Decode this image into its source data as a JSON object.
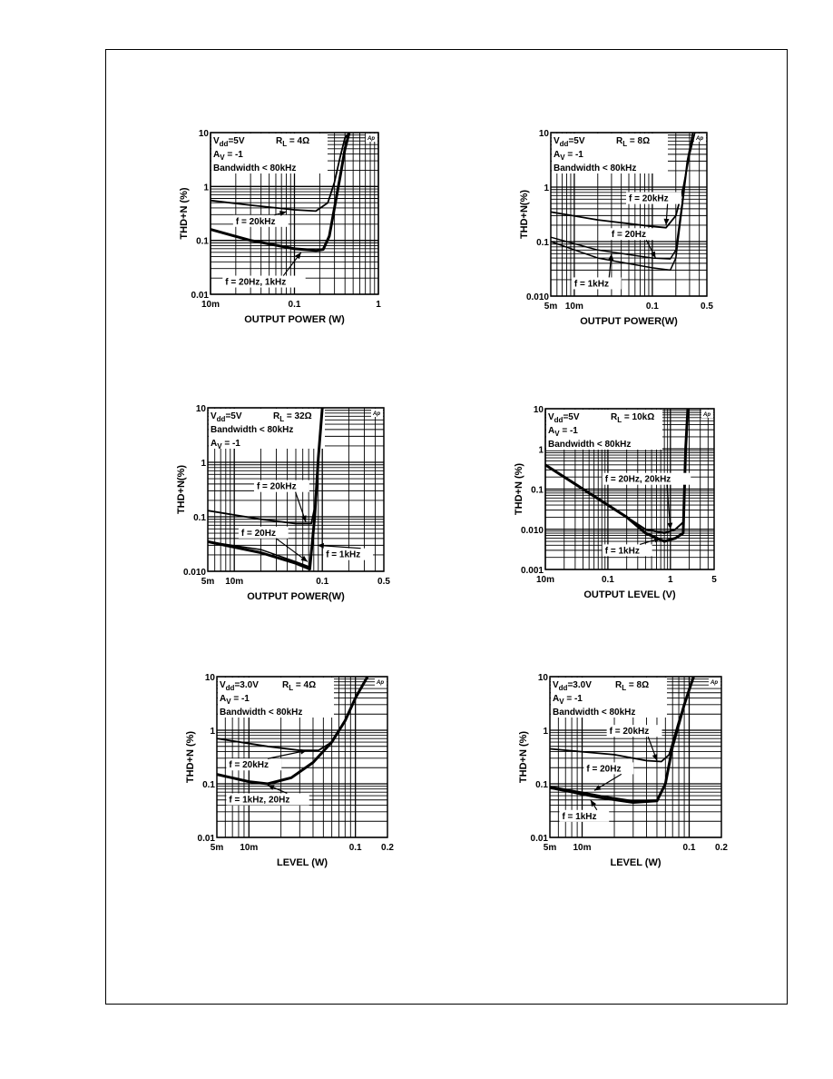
{
  "page": {
    "border": true
  },
  "chart_data": [
    {
      "type": "line",
      "scale": "log-log",
      "header": {
        "line1": "Vdd=5V",
        "line1b": "RL = 4Ω",
        "line2": "AV = -1",
        "line3": "Bandwidth < 80kHz",
        "corner": "Ap"
      },
      "xlabel": "OUTPUT POWER (W)",
      "ylabel": "THD+N (%)",
      "xlim": [
        0.01,
        1
      ],
      "ylim": [
        0.01,
        10
      ],
      "xticks": [
        {
          "v": 0.01,
          "label": "10m"
        },
        {
          "v": 0.1,
          "label": "0.1"
        },
        {
          "v": 1,
          "label": "1"
        }
      ],
      "yticks": [
        {
          "v": 10,
          "label": "10"
        },
        {
          "v": 1,
          "label": "1"
        },
        {
          "v": 0.1,
          "label": "0.1"
        },
        {
          "v": 0.01,
          "label": "0.01"
        }
      ],
      "series": [
        {
          "name": "f = 20kHz",
          "width": 1.8,
          "x": [
            0.01,
            0.03,
            0.1,
            0.18,
            0.25,
            0.3,
            0.35,
            0.4,
            0.45
          ],
          "y": [
            0.55,
            0.45,
            0.37,
            0.35,
            0.5,
            1.2,
            3.5,
            8,
            10
          ]
        },
        {
          "name": "f = 20Hz, 1kHz",
          "width": 3,
          "x": [
            0.01,
            0.03,
            0.1,
            0.18,
            0.22,
            0.26,
            0.3,
            0.35,
            0.4,
            0.45
          ],
          "y": [
            0.16,
            0.1,
            0.07,
            0.065,
            0.068,
            0.12,
            0.4,
            1.5,
            5,
            10
          ]
        }
      ],
      "annotations": [
        {
          "text": "f = 20kHz",
          "x": 0.02,
          "y": 0.2,
          "ax": 0.08,
          "ay": 0.34
        },
        {
          "text": "f = 20Hz, 1kHz",
          "x": 0.015,
          "y": 0.015,
          "ax": 0.12,
          "ay": 0.06
        }
      ]
    },
    {
      "type": "line",
      "scale": "log-log",
      "header": {
        "line1": "Vdd=5V",
        "line1b": "RL = 8Ω",
        "line2": "AV = -1",
        "line3": "Bandwidth < 80kHz",
        "corner": "Ap"
      },
      "xlabel": "OUTPUT POWER(W)",
      "ylabel": "THD+N(%)",
      "xlim": [
        0.005,
        0.5
      ],
      "ylim": [
        0.01,
        10
      ],
      "xticks": [
        {
          "v": 0.005,
          "label": "5m"
        },
        {
          "v": 0.01,
          "label": "10m"
        },
        {
          "v": 0.1,
          "label": "0.1"
        },
        {
          "v": 0.5,
          "label": "0.5"
        }
      ],
      "yticks": [
        {
          "v": 10,
          "label": "10"
        },
        {
          "v": 1,
          "label": "1"
        },
        {
          "v": 0.1,
          "label": "0.1"
        },
        {
          "v": 0.01,
          "label": "0.010"
        }
      ],
      "series": [
        {
          "name": "f = 20kHz",
          "width": 1.8,
          "x": [
            0.005,
            0.02,
            0.1,
            0.15,
            0.2,
            0.25,
            0.3,
            0.35
          ],
          "y": [
            0.35,
            0.25,
            0.19,
            0.18,
            0.3,
            1,
            4,
            10
          ]
        },
        {
          "name": "f = 20Hz",
          "width": 1.5,
          "x": [
            0.005,
            0.02,
            0.1,
            0.17,
            0.2,
            0.24,
            0.28,
            0.33
          ],
          "y": [
            0.12,
            0.07,
            0.05,
            0.048,
            0.07,
            0.5,
            3,
            10
          ]
        },
        {
          "name": "f = 1kHz",
          "width": 1.5,
          "x": [
            0.005,
            0.02,
            0.1,
            0.17,
            0.2,
            0.24,
            0.28,
            0.33
          ],
          "y": [
            0.1,
            0.05,
            0.033,
            0.03,
            0.05,
            0.4,
            2.5,
            10
          ]
        }
      ],
      "annotations": [
        {
          "text": "f = 20kHz",
          "x": 0.05,
          "y": 0.55,
          "ax": 0.15,
          "ay": 0.2
        },
        {
          "text": "f = 20Hz",
          "x": 0.03,
          "y": 0.12,
          "ax": 0.11,
          "ay": 0.05
        },
        {
          "text": "f = 1kHz",
          "x": 0.01,
          "y": 0.015,
          "ax": 0.03,
          "ay": 0.06
        }
      ]
    },
    {
      "type": "line",
      "scale": "log-log",
      "header": {
        "line1": "Vdd=5V",
        "line1b": "RL = 32Ω",
        "line2": "Bandwidth < 80kHz",
        "line3": "AV = -1",
        "corner": "Ap"
      },
      "xlabel": "OUTPUT POWER(W)",
      "ylabel": "THD+N(%)",
      "xlim": [
        0.005,
        0.5
      ],
      "ylim": [
        0.01,
        10
      ],
      "xticks": [
        {
          "v": 0.005,
          "label": "5m"
        },
        {
          "v": 0.01,
          "label": "10m"
        },
        {
          "v": 0.1,
          "label": "0.1"
        },
        {
          "v": 0.5,
          "label": "0.5"
        }
      ],
      "yticks": [
        {
          "v": 10,
          "label": "10"
        },
        {
          "v": 1,
          "label": "1"
        },
        {
          "v": 0.1,
          "label": "0.1"
        },
        {
          "v": 0.01,
          "label": "0.010"
        }
      ],
      "series": [
        {
          "name": "f = 20kHz",
          "width": 1.8,
          "x": [
            0.005,
            0.02,
            0.05,
            0.075,
            0.085,
            0.09,
            0.1
          ],
          "y": [
            0.13,
            0.09,
            0.075,
            0.075,
            0.2,
            1,
            10
          ]
        },
        {
          "name": "f = 20Hz",
          "width": 1.5,
          "x": [
            0.005,
            0.02,
            0.05,
            0.072,
            0.082,
            0.09,
            0.1
          ],
          "y": [
            0.035,
            0.025,
            0.015,
            0.012,
            0.1,
            1,
            10
          ]
        },
        {
          "name": "f = 1kHz",
          "width": 3,
          "x": [
            0.005,
            0.02,
            0.05,
            0.072,
            0.082,
            0.09,
            0.1
          ],
          "y": [
            0.035,
            0.022,
            0.014,
            0.011,
            0.1,
            1.2,
            10
          ]
        }
      ],
      "annotations": [
        {
          "text": "f = 20kHz",
          "x": 0.018,
          "y": 0.32,
          "ax": 0.065,
          "ay": 0.08
        },
        {
          "text": "f = 20Hz",
          "x": 0.012,
          "y": 0.045,
          "ax": 0.068,
          "ay": 0.015
        },
        {
          "text": "f = 1kHz",
          "x": 0.11,
          "y": 0.018,
          "ax": 0.088,
          "ay": 0.03
        }
      ]
    },
    {
      "type": "line",
      "scale": "log-log",
      "header": {
        "line1": "Vdd=5V",
        "line1b": "RL = 10kΩ",
        "line2": "AV = -1",
        "line3": "Bandwidth < 80kHz",
        "corner": "Ap"
      },
      "xlabel": "OUTPUT LEVEL (V)",
      "ylabel": "THD+N (%)",
      "xlim": [
        0.01,
        5
      ],
      "ylim": [
        0.001,
        10
      ],
      "xticks": [
        {
          "v": 0.01,
          "label": "10m"
        },
        {
          "v": 0.1,
          "label": "0.1"
        },
        {
          "v": 1,
          "label": "1"
        },
        {
          "v": 5,
          "label": "5"
        }
      ],
      "yticks": [
        {
          "v": 10,
          "label": "10"
        },
        {
          "v": 1,
          "label": "1"
        },
        {
          "v": 0.1,
          "label": "0.1"
        },
        {
          "v": 0.01,
          "label": "0.010"
        },
        {
          "v": 0.001,
          "label": "0.001"
        }
      ],
      "series": [
        {
          "name": "f = 20Hz, 20kHz",
          "width": 2,
          "x": [
            0.01,
            0.05,
            0.2,
            0.4,
            0.8,
            1.2,
            1.6,
            1.75,
            1.9
          ],
          "y": [
            0.4,
            0.08,
            0.02,
            0.01,
            0.008,
            0.01,
            0.015,
            1,
            10
          ]
        },
        {
          "name": "f = 1kHz",
          "width": 3,
          "x": [
            0.01,
            0.05,
            0.2,
            0.4,
            0.8,
            1.2,
            1.6,
            1.75,
            1.9
          ],
          "y": [
            0.4,
            0.08,
            0.02,
            0.008,
            0.005,
            0.006,
            0.008,
            1,
            10
          ]
        }
      ],
      "annotations": [
        {
          "text": "f = 20Hz, 20kHz",
          "x": 0.09,
          "y": 0.15,
          "ax": 1,
          "ay": 0.01
        },
        {
          "text": "f = 1kHz",
          "x": 0.09,
          "y": 0.0025,
          "ax": 0.7,
          "ay": 0.006
        }
      ]
    },
    {
      "type": "line",
      "scale": "log-log",
      "header": {
        "line1": "Vdd=3.0V",
        "line1b": "RL = 4Ω",
        "line2": "AV = -1",
        "line3": "Bandwidth < 80kHz",
        "corner": "Ap"
      },
      "xlabel": "LEVEL (W)",
      "ylabel": "THD+N (%)",
      "xlim": [
        0.005,
        0.2
      ],
      "ylim": [
        0.01,
        10
      ],
      "xticks": [
        {
          "v": 0.005,
          "label": "5m"
        },
        {
          "v": 0.01,
          "label": "10m"
        },
        {
          "v": 0.1,
          "label": "0.1"
        },
        {
          "v": 0.2,
          "label": "0.2"
        }
      ],
      "yticks": [
        {
          "v": 10,
          "label": "10"
        },
        {
          "v": 1,
          "label": "1"
        },
        {
          "v": 0.1,
          "label": "0.1"
        },
        {
          "v": 0.01,
          "label": "0.01"
        }
      ],
      "series": [
        {
          "name": "f = 20kHz",
          "width": 1.8,
          "x": [
            0.005,
            0.015,
            0.03,
            0.045,
            0.06,
            0.08,
            0.1,
            0.13
          ],
          "y": [
            0.7,
            0.5,
            0.42,
            0.42,
            0.6,
            1.5,
            4,
            10
          ]
        },
        {
          "name": "f = 1kHz, 20Hz",
          "width": 3,
          "x": [
            0.005,
            0.01,
            0.015,
            0.025,
            0.04,
            0.06,
            0.08,
            0.1,
            0.13
          ],
          "y": [
            0.15,
            0.11,
            0.1,
            0.13,
            0.25,
            0.6,
            1.5,
            4,
            10
          ]
        }
      ],
      "annotations": [
        {
          "text": "f = 20kHz",
          "x": 0.0065,
          "y": 0.2,
          "ax": 0.035,
          "ay": 0.42
        },
        {
          "text": "f = 1kHz, 20Hz",
          "x": 0.0065,
          "y": 0.045,
          "ax": 0.015,
          "ay": 0.095
        }
      ]
    },
    {
      "type": "line",
      "scale": "log-log",
      "header": {
        "line1": "Vdd=3.0V",
        "line1b": "RL = 8Ω",
        "line2": "AV = -1",
        "line3": "Bandwidth < 80kHz",
        "corner": "Ap"
      },
      "xlabel": "LEVEL (W)",
      "ylabel": "THD+N (%)",
      "xlim": [
        0.005,
        0.2
      ],
      "ylim": [
        0.01,
        10
      ],
      "xticks": [
        {
          "v": 0.005,
          "label": "5m"
        },
        {
          "v": 0.01,
          "label": "10m"
        },
        {
          "v": 0.1,
          "label": "0.1"
        },
        {
          "v": 0.2,
          "label": "0.2"
        }
      ],
      "yticks": [
        {
          "v": 10,
          "label": "10"
        },
        {
          "v": 1,
          "label": "1"
        },
        {
          "v": 0.1,
          "label": "0.1"
        },
        {
          "v": 0.01,
          "label": "0.01"
        }
      ],
      "series": [
        {
          "name": "f = 20kHz",
          "width": 1.8,
          "x": [
            0.005,
            0.02,
            0.04,
            0.055,
            0.065,
            0.08,
            0.1,
            0.11
          ],
          "y": [
            0.45,
            0.35,
            0.27,
            0.26,
            0.35,
            1.5,
            6,
            10
          ]
        },
        {
          "name": "f = 20Hz",
          "width": 1.5,
          "x": [
            0.005,
            0.015,
            0.03,
            0.05,
            0.06,
            0.07,
            0.09,
            0.11
          ],
          "y": [
            0.09,
            0.06,
            0.048,
            0.05,
            0.1,
            0.5,
            3,
            10
          ]
        },
        {
          "name": "f = 1kHz",
          "width": 3,
          "x": [
            0.005,
            0.015,
            0.03,
            0.05,
            0.06,
            0.07,
            0.09,
            0.11
          ],
          "y": [
            0.085,
            0.055,
            0.045,
            0.048,
            0.1,
            0.5,
            3,
            10
          ]
        }
      ],
      "annotations": [
        {
          "text": "f = 20kHz",
          "x": 0.018,
          "y": 0.85,
          "ax": 0.05,
          "ay": 0.27
        },
        {
          "text": "f = 20Hz",
          "x": 0.011,
          "y": 0.17,
          "ax": 0.013,
          "ay": 0.075
        },
        {
          "text": "f = 1kHz",
          "x": 0.0065,
          "y": 0.022,
          "ax": 0.012,
          "ay": 0.05
        }
      ]
    }
  ]
}
